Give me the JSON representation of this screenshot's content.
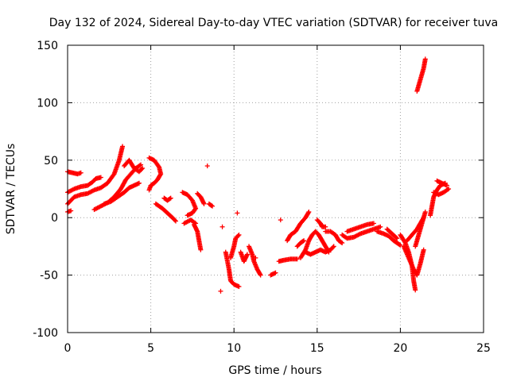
{
  "chart_data": {
    "type": "scatter",
    "title": "Day 132 of 2024, Sidereal Day-to-day VTEC variation (SDTVAR) for receiver tuva",
    "xlabel": "GPS time / hours",
    "ylabel": "SDTVAR / TECUs",
    "xlim": [
      0,
      25
    ],
    "ylim": [
      -100,
      150
    ],
    "xticks": [
      0,
      5,
      10,
      15,
      20,
      25
    ],
    "yticks": [
      -100,
      -50,
      0,
      50,
      100,
      150
    ],
    "grid": true,
    "marker": "+",
    "color": "#ff0000",
    "series": [
      {
        "name": "SDTVAR",
        "segments": [
          [
            [
              0.0,
              12
            ],
            [
              0.4,
              18
            ],
            [
              0.8,
              20
            ],
            [
              1.2,
              21
            ],
            [
              1.6,
              24
            ],
            [
              2.0,
              26
            ],
            [
              2.4,
              30
            ],
            [
              2.8,
              38
            ],
            [
              3.1,
              50
            ],
            [
              3.3,
              62
            ]
          ],
          [
            [
              0.0,
              22
            ],
            [
              0.4,
              25
            ],
            [
              0.8,
              27
            ],
            [
              1.2,
              28
            ],
            [
              1.5,
              31
            ],
            [
              1.7,
              34
            ],
            [
              2.0,
              35
            ]
          ],
          [
            [
              0.0,
              40
            ],
            [
              0.3,
              39
            ],
            [
              0.6,
              38
            ],
            [
              0.8,
              39
            ]
          ],
          [
            [
              0.0,
              5
            ],
            [
              0.2,
              6
            ]
          ],
          [
            [
              1.6,
              7
            ],
            [
              2.0,
              10
            ],
            [
              2.4,
              13
            ],
            [
              2.8,
              18
            ],
            [
              3.2,
              25
            ],
            [
              3.5,
              33
            ],
            [
              3.8,
              38
            ],
            [
              4.1,
              43
            ],
            [
              4.4,
              46
            ]
          ],
          [
            [
              2.2,
              12
            ],
            [
              2.6,
              14
            ],
            [
              3.0,
              18
            ],
            [
              3.4,
              22
            ],
            [
              3.7,
              26
            ],
            [
              4.0,
              28
            ],
            [
              4.3,
              30
            ]
          ],
          [
            [
              3.4,
              45
            ],
            [
              3.7,
              50
            ],
            [
              4.0,
              43
            ],
            [
              4.3,
              40
            ],
            [
              4.5,
              43
            ]
          ],
          [
            [
              4.9,
              52
            ],
            [
              5.2,
              50
            ],
            [
              5.5,
              44
            ],
            [
              5.6,
              38
            ],
            [
              5.4,
              33
            ],
            [
              5.2,
              30
            ],
            [
              5.0,
              28
            ],
            [
              4.9,
              24
            ]
          ],
          [
            [
              5.3,
              12
            ],
            [
              5.7,
              8
            ],
            [
              6.0,
              4
            ],
            [
              6.3,
              0
            ],
            [
              6.5,
              -3
            ]
          ],
          [
            [
              5.8,
              17
            ],
            [
              6.0,
              15
            ],
            [
              6.2,
              17
            ]
          ],
          [
            [
              6.9,
              22
            ],
            [
              7.2,
              20
            ],
            [
              7.5,
              15
            ],
            [
              7.7,
              8
            ],
            [
              7.5,
              4
            ],
            [
              7.2,
              2
            ]
          ],
          [
            [
              7.0,
              -5
            ],
            [
              7.4,
              -2
            ],
            [
              7.7,
              -5
            ]
          ],
          [
            [
              7.6,
              -6
            ],
            [
              7.8,
              -12
            ],
            [
              7.9,
              -20
            ],
            [
              8.0,
              -28
            ]
          ],
          [
            [
              7.8,
              21
            ],
            [
              8.0,
              18
            ],
            [
              8.2,
              12
            ]
          ],
          [
            [
              8.5,
              12
            ],
            [
              8.7,
              10
            ]
          ],
          [
            [
              8.4,
              45
            ]
          ],
          [
            [
              9.3,
              -8
            ]
          ],
          [
            [
              9.2,
              -64
            ]
          ],
          [
            [
              9.5,
              -30
            ],
            [
              9.7,
              -45
            ],
            [
              9.8,
              -55
            ],
            [
              10.0,
              -58
            ],
            [
              10.3,
              -60
            ]
          ],
          [
            [
              9.8,
              -35
            ],
            [
              10.0,
              -25
            ],
            [
              10.1,
              -18
            ],
            [
              10.3,
              -15
            ]
          ],
          [
            [
              10.2,
              4
            ]
          ],
          [
            [
              10.4,
              -30
            ],
            [
              10.6,
              -38
            ],
            [
              10.8,
              -32
            ]
          ],
          [
            [
              10.9,
              -25
            ],
            [
              11.1,
              -32
            ],
            [
              11.2,
              -38
            ],
            [
              11.4,
              -45
            ],
            [
              11.6,
              -50
            ]
          ],
          [
            [
              11.3,
              -35
            ]
          ],
          [
            [
              12.2,
              -50
            ],
            [
              12.5,
              -48
            ]
          ],
          [
            [
              12.7,
              -38
            ],
            [
              13.0,
              -37
            ],
            [
              13.4,
              -36
            ],
            [
              13.8,
              -36
            ]
          ],
          [
            [
              12.8,
              -2
            ]
          ],
          [
            [
              13.2,
              -20
            ],
            [
              13.4,
              -15
            ],
            [
              13.7,
              -12
            ],
            [
              14.0,
              -5
            ],
            [
              14.3,
              0
            ],
            [
              14.5,
              5
            ]
          ],
          [
            [
              13.8,
              -25
            ],
            [
              14.0,
              -22
            ],
            [
              14.2,
              -20
            ]
          ],
          [
            [
              14.0,
              -35
            ],
            [
              14.3,
              -28
            ],
            [
              14.5,
              -20
            ],
            [
              14.7,
              -15
            ],
            [
              14.9,
              -12
            ],
            [
              15.1,
              -15
            ],
            [
              15.3,
              -20
            ],
            [
              15.5,
              -25
            ],
            [
              15.7,
              -30
            ]
          ],
          [
            [
              14.3,
              -30
            ],
            [
              14.6,
              -32
            ],
            [
              14.9,
              -30
            ],
            [
              15.2,
              -28
            ],
            [
              15.5,
              -30
            ],
            [
              15.8,
              -28
            ],
            [
              16.0,
              -25
            ]
          ],
          [
            [
              15.0,
              -2
            ],
            [
              15.2,
              -5
            ],
            [
              15.3,
              -8
            ],
            [
              15.5,
              -8
            ]
          ],
          [
            [
              15.5,
              -12
            ],
            [
              15.8,
              -12
            ],
            [
              16.1,
              -15
            ],
            [
              16.3,
              -20
            ],
            [
              16.5,
              -22
            ]
          ],
          [
            [
              16.5,
              -15
            ],
            [
              16.8,
              -18
            ],
            [
              17.2,
              -17
            ],
            [
              17.6,
              -14
            ],
            [
              18.0,
              -12
            ],
            [
              18.4,
              -10
            ],
            [
              18.8,
              -8
            ]
          ],
          [
            [
              16.8,
              -12
            ],
            [
              17.2,
              -10
            ],
            [
              17.6,
              -8
            ],
            [
              18.0,
              -6
            ],
            [
              18.4,
              -5
            ]
          ],
          [
            [
              18.6,
              -12
            ],
            [
              19.0,
              -14
            ],
            [
              19.3,
              -16
            ],
            [
              19.6,
              -20
            ],
            [
              19.8,
              -22
            ],
            [
              20.0,
              -24
            ]
          ],
          [
            [
              19.2,
              -10
            ],
            [
              19.5,
              -14
            ],
            [
              19.8,
              -18
            ]
          ],
          [
            [
              20.0,
              -15
            ],
            [
              20.3,
              -22
            ],
            [
              20.5,
              -30
            ],
            [
              20.7,
              -42
            ],
            [
              20.8,
              -55
            ],
            [
              20.9,
              -63
            ]
          ],
          [
            [
              20.2,
              -25
            ],
            [
              20.5,
              -35
            ],
            [
              20.8,
              -45
            ],
            [
              21.0,
              -50
            ],
            [
              21.2,
              -40
            ],
            [
              21.4,
              -28
            ]
          ],
          [
            [
              20.4,
              -20
            ],
            [
              20.7,
              -15
            ],
            [
              21.0,
              -10
            ],
            [
              21.2,
              -5
            ],
            [
              21.4,
              0
            ]
          ],
          [
            [
              20.9,
              -25
            ],
            [
              21.1,
              -15
            ],
            [
              21.3,
              -5
            ],
            [
              21.5,
              5
            ]
          ],
          [
            [
              21.8,
              2
            ],
            [
              21.9,
              10
            ],
            [
              22.0,
              18
            ],
            [
              22.2,
              24
            ],
            [
              22.4,
              28
            ],
            [
              22.7,
              30
            ]
          ],
          [
            [
              22.0,
              22
            ],
            [
              22.3,
              20
            ],
            [
              22.6,
              22
            ],
            [
              22.9,
              25
            ]
          ],
          [
            [
              22.2,
              32
            ],
            [
              22.5,
              30
            ],
            [
              22.8,
              28
            ]
          ],
          [
            [
              21.0,
              110
            ],
            [
              21.2,
              120
            ],
            [
              21.4,
              130
            ],
            [
              21.5,
              138
            ]
          ]
        ]
      }
    ]
  }
}
